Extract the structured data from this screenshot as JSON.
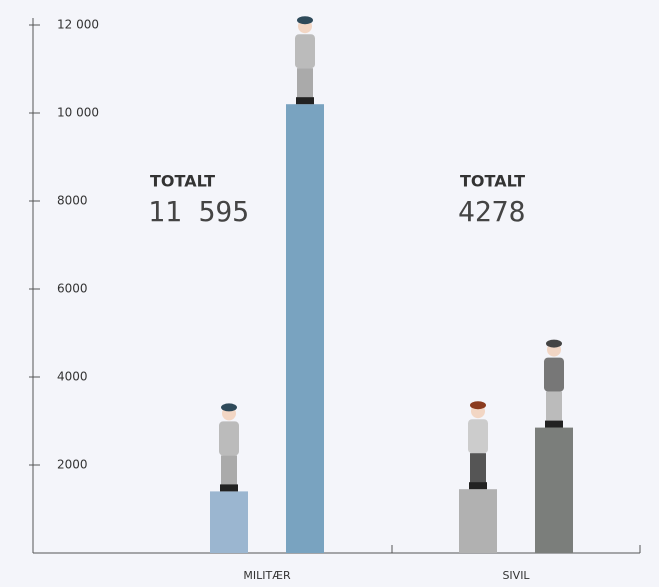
{
  "chart_data": {
    "type": "bar",
    "categories": [
      "MILITÆR",
      "SIVIL"
    ],
    "series": [
      {
        "colors": [
          "#9bb6d0",
          "#b1b1b1"
        ],
        "values": [
          1400,
          1450
        ]
      },
      {
        "colors": [
          "#79a3c0",
          "#7b7e7b"
        ],
        "values": [
          10200,
          2850
        ]
      }
    ],
    "ylim": [
      0,
      12000
    ],
    "yticks": [
      2000,
      4000,
      6000,
      8000,
      {
        "value": 10000,
        "label": "10 000"
      },
      {
        "value": 12000,
        "label": "12 000"
      }
    ],
    "annotations": [
      {
        "label": "TOTALT",
        "text": "11 595"
      },
      {
        "label": "TOTALT",
        "text": "4278"
      }
    ]
  }
}
